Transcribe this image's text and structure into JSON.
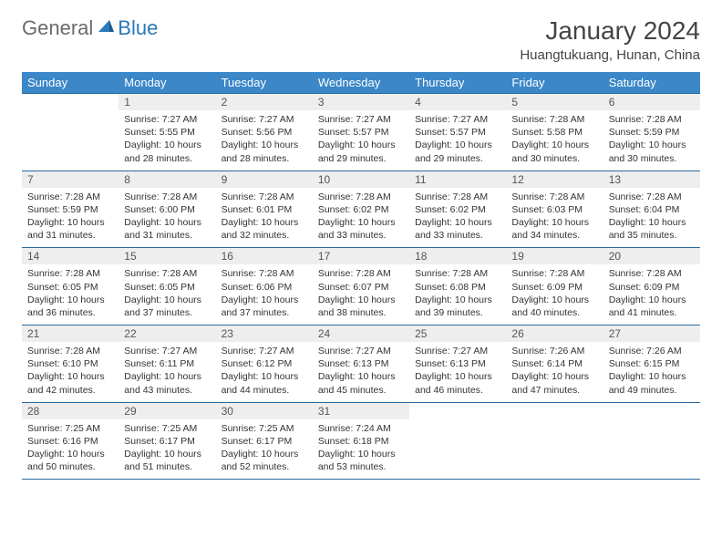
{
  "brand": {
    "general": "General",
    "blue": "Blue"
  },
  "title": "January 2024",
  "subtitle": "Huangtukuang, Hunan, China",
  "colors": {
    "header_bg": "#3b87c8",
    "header_text": "#ffffff",
    "daynum_bg": "#eeeeee",
    "rule": "#2a6aa0",
    "logo_gray": "#6a6a6a",
    "logo_blue": "#2a7ab9"
  },
  "weekdays": [
    "Sunday",
    "Monday",
    "Tuesday",
    "Wednesday",
    "Thursday",
    "Friday",
    "Saturday"
  ],
  "weeks": [
    [
      {
        "n": "",
        "sr": "",
        "ss": "",
        "dl": ""
      },
      {
        "n": "1",
        "sr": "Sunrise: 7:27 AM",
        "ss": "Sunset: 5:55 PM",
        "dl": "Daylight: 10 hours and 28 minutes."
      },
      {
        "n": "2",
        "sr": "Sunrise: 7:27 AM",
        "ss": "Sunset: 5:56 PM",
        "dl": "Daylight: 10 hours and 28 minutes."
      },
      {
        "n": "3",
        "sr": "Sunrise: 7:27 AM",
        "ss": "Sunset: 5:57 PM",
        "dl": "Daylight: 10 hours and 29 minutes."
      },
      {
        "n": "4",
        "sr": "Sunrise: 7:27 AM",
        "ss": "Sunset: 5:57 PM",
        "dl": "Daylight: 10 hours and 29 minutes."
      },
      {
        "n": "5",
        "sr": "Sunrise: 7:28 AM",
        "ss": "Sunset: 5:58 PM",
        "dl": "Daylight: 10 hours and 30 minutes."
      },
      {
        "n": "6",
        "sr": "Sunrise: 7:28 AM",
        "ss": "Sunset: 5:59 PM",
        "dl": "Daylight: 10 hours and 30 minutes."
      }
    ],
    [
      {
        "n": "7",
        "sr": "Sunrise: 7:28 AM",
        "ss": "Sunset: 5:59 PM",
        "dl": "Daylight: 10 hours and 31 minutes."
      },
      {
        "n": "8",
        "sr": "Sunrise: 7:28 AM",
        "ss": "Sunset: 6:00 PM",
        "dl": "Daylight: 10 hours and 31 minutes."
      },
      {
        "n": "9",
        "sr": "Sunrise: 7:28 AM",
        "ss": "Sunset: 6:01 PM",
        "dl": "Daylight: 10 hours and 32 minutes."
      },
      {
        "n": "10",
        "sr": "Sunrise: 7:28 AM",
        "ss": "Sunset: 6:02 PM",
        "dl": "Daylight: 10 hours and 33 minutes."
      },
      {
        "n": "11",
        "sr": "Sunrise: 7:28 AM",
        "ss": "Sunset: 6:02 PM",
        "dl": "Daylight: 10 hours and 33 minutes."
      },
      {
        "n": "12",
        "sr": "Sunrise: 7:28 AM",
        "ss": "Sunset: 6:03 PM",
        "dl": "Daylight: 10 hours and 34 minutes."
      },
      {
        "n": "13",
        "sr": "Sunrise: 7:28 AM",
        "ss": "Sunset: 6:04 PM",
        "dl": "Daylight: 10 hours and 35 minutes."
      }
    ],
    [
      {
        "n": "14",
        "sr": "Sunrise: 7:28 AM",
        "ss": "Sunset: 6:05 PM",
        "dl": "Daylight: 10 hours and 36 minutes."
      },
      {
        "n": "15",
        "sr": "Sunrise: 7:28 AM",
        "ss": "Sunset: 6:05 PM",
        "dl": "Daylight: 10 hours and 37 minutes."
      },
      {
        "n": "16",
        "sr": "Sunrise: 7:28 AM",
        "ss": "Sunset: 6:06 PM",
        "dl": "Daylight: 10 hours and 37 minutes."
      },
      {
        "n": "17",
        "sr": "Sunrise: 7:28 AM",
        "ss": "Sunset: 6:07 PM",
        "dl": "Daylight: 10 hours and 38 minutes."
      },
      {
        "n": "18",
        "sr": "Sunrise: 7:28 AM",
        "ss": "Sunset: 6:08 PM",
        "dl": "Daylight: 10 hours and 39 minutes."
      },
      {
        "n": "19",
        "sr": "Sunrise: 7:28 AM",
        "ss": "Sunset: 6:09 PM",
        "dl": "Daylight: 10 hours and 40 minutes."
      },
      {
        "n": "20",
        "sr": "Sunrise: 7:28 AM",
        "ss": "Sunset: 6:09 PM",
        "dl": "Daylight: 10 hours and 41 minutes."
      }
    ],
    [
      {
        "n": "21",
        "sr": "Sunrise: 7:28 AM",
        "ss": "Sunset: 6:10 PM",
        "dl": "Daylight: 10 hours and 42 minutes."
      },
      {
        "n": "22",
        "sr": "Sunrise: 7:27 AM",
        "ss": "Sunset: 6:11 PM",
        "dl": "Daylight: 10 hours and 43 minutes."
      },
      {
        "n": "23",
        "sr": "Sunrise: 7:27 AM",
        "ss": "Sunset: 6:12 PM",
        "dl": "Daylight: 10 hours and 44 minutes."
      },
      {
        "n": "24",
        "sr": "Sunrise: 7:27 AM",
        "ss": "Sunset: 6:13 PM",
        "dl": "Daylight: 10 hours and 45 minutes."
      },
      {
        "n": "25",
        "sr": "Sunrise: 7:27 AM",
        "ss": "Sunset: 6:13 PM",
        "dl": "Daylight: 10 hours and 46 minutes."
      },
      {
        "n": "26",
        "sr": "Sunrise: 7:26 AM",
        "ss": "Sunset: 6:14 PM",
        "dl": "Daylight: 10 hours and 47 minutes."
      },
      {
        "n": "27",
        "sr": "Sunrise: 7:26 AM",
        "ss": "Sunset: 6:15 PM",
        "dl": "Daylight: 10 hours and 49 minutes."
      }
    ],
    [
      {
        "n": "28",
        "sr": "Sunrise: 7:25 AM",
        "ss": "Sunset: 6:16 PM",
        "dl": "Daylight: 10 hours and 50 minutes."
      },
      {
        "n": "29",
        "sr": "Sunrise: 7:25 AM",
        "ss": "Sunset: 6:17 PM",
        "dl": "Daylight: 10 hours and 51 minutes."
      },
      {
        "n": "30",
        "sr": "Sunrise: 7:25 AM",
        "ss": "Sunset: 6:17 PM",
        "dl": "Daylight: 10 hours and 52 minutes."
      },
      {
        "n": "31",
        "sr": "Sunrise: 7:24 AM",
        "ss": "Sunset: 6:18 PM",
        "dl": "Daylight: 10 hours and 53 minutes."
      },
      {
        "n": "",
        "sr": "",
        "ss": "",
        "dl": ""
      },
      {
        "n": "",
        "sr": "",
        "ss": "",
        "dl": ""
      },
      {
        "n": "",
        "sr": "",
        "ss": "",
        "dl": ""
      }
    ]
  ]
}
